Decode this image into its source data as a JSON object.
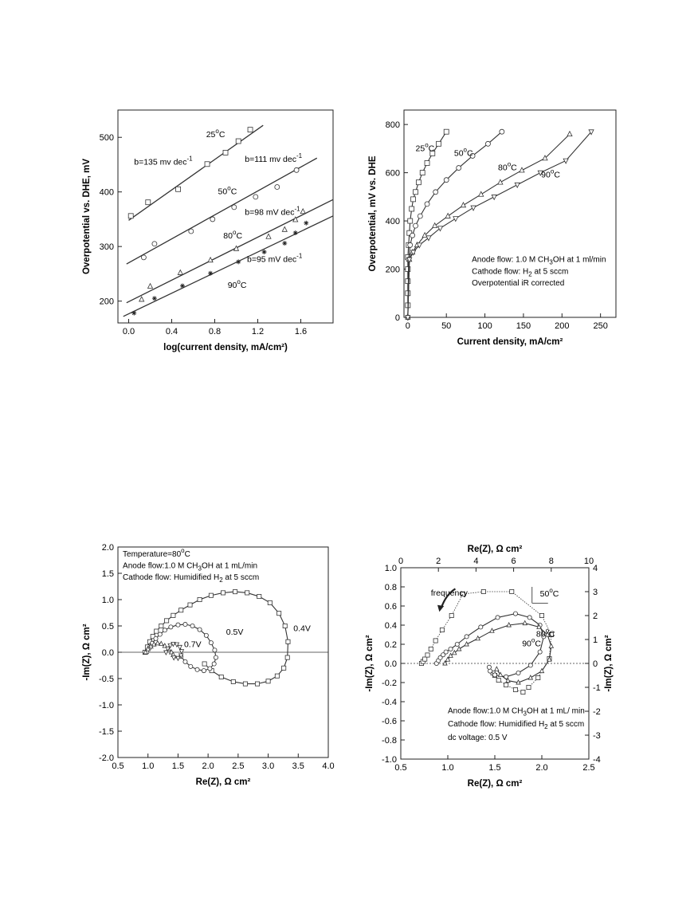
{
  "chart_data": [
    {
      "id": "tafel",
      "type": "scatter",
      "xlabel": "log(current density, mA/cm²)",
      "ylabel": "Overpotential vs. DHE, mV",
      "xlim": [
        -0.1,
        1.9
      ],
      "ylim": [
        160,
        550
      ],
      "xticks": [
        "0.0",
        "0.4",
        "0.8",
        "1.2",
        "1.6"
      ],
      "yticks": [
        "200",
        "300",
        "400",
        "500"
      ],
      "xtick_values": [
        0,
        0.4,
        0.8,
        1.2,
        1.6
      ],
      "ytick_values": [
        200,
        300,
        400,
        500
      ],
      "series": [
        {
          "marker": "square",
          "x": [
            0.02,
            0.18,
            0.46,
            0.73,
            0.9,
            1.02,
            1.13
          ],
          "y": [
            356,
            381,
            405,
            451,
            472,
            493,
            514
          ],
          "fit": [
            [
              0.0,
              348
            ],
            [
              1.25,
              522
            ]
          ]
        },
        {
          "marker": "circle",
          "x": [
            0.14,
            0.24,
            0.58,
            0.78,
            0.98,
            1.18,
            1.38,
            1.56
          ],
          "y": [
            280,
            305,
            328,
            350,
            372,
            391,
            409,
            440
          ],
          "fit": [
            [
              -0.02,
              268
            ],
            [
              1.75,
              462
            ]
          ]
        },
        {
          "marker": "triangle",
          "x": [
            0.12,
            0.2,
            0.48,
            0.76,
            1.0,
            1.3,
            1.45,
            1.55,
            1.62
          ],
          "y": [
            203,
            227,
            252,
            275,
            296,
            318,
            331,
            349,
            364
          ],
          "fit": [
            [
              -0.02,
              197
            ],
            [
              1.9,
              386
            ]
          ]
        },
        {
          "marker": "star",
          "x": [
            0.05,
            0.24,
            0.5,
            0.76,
            1.02,
            1.26,
            1.45,
            1.55,
            1.65
          ],
          "y": [
            178,
            205,
            228,
            251,
            272,
            290,
            306,
            325,
            343
          ],
          "fit": [
            [
              -0.05,
              172
            ],
            [
              1.9,
              356
            ]
          ]
        }
      ],
      "annotations": [
        {
          "text": "25",
          "sup": "o",
          "tail": "C",
          "x": 0.72,
          "y": 500
        },
        {
          "text": "b=135 mv dec",
          "sup": "-1",
          "tail": "",
          "x": 0.05,
          "y": 450
        },
        {
          "text": "b=111 mv dec",
          "sup": "-1",
          "tail": "",
          "x": 1.08,
          "y": 455
        },
        {
          "text": "50",
          "sup": "o",
          "tail": "C",
          "x": 0.83,
          "y": 396
        },
        {
          "text": "b=98 mV dec",
          "sup": "-1",
          "tail": "",
          "x": 1.08,
          "y": 358
        },
        {
          "text": "80",
          "sup": "o",
          "tail": "C",
          "x": 0.88,
          "y": 315
        },
        {
          "text": "b=95 mV dec",
          "sup": "-1",
          "tail": "",
          "x": 1.1,
          "y": 272
        },
        {
          "text": "90",
          "sup": "o",
          "tail": "C",
          "x": 0.92,
          "y": 224
        }
      ]
    },
    {
      "id": "polarization",
      "type": "line",
      "xlabel": "Current density, mA/cm²",
      "ylabel": "Overpotential, mV vs. DHE",
      "xlim": [
        -5,
        270
      ],
      "ylim": [
        0,
        860
      ],
      "xticks": [
        "0",
        "50",
        "100",
        "150",
        "200",
        "250"
      ],
      "yticks": [
        "0",
        "200",
        "400",
        "600",
        "800"
      ],
      "xtick_values": [
        0,
        50,
        100,
        150,
        200,
        250
      ],
      "ytick_values": [
        0,
        200,
        400,
        600,
        800
      ],
      "series": [
        {
          "marker": "square",
          "x": [
            0,
            0,
            0,
            0,
            0,
            1,
            2,
            3,
            5,
            7,
            10,
            14,
            19,
            25,
            32,
            40,
            50
          ],
          "y": [
            50,
            100,
            150,
            200,
            250,
            300,
            350,
            400,
            450,
            490,
            520,
            560,
            600,
            640,
            680,
            720,
            770
          ]
        },
        {
          "marker": "circle",
          "x": [
            0,
            1,
            3,
            6,
            10,
            16,
            25,
            36,
            50,
            66,
            84,
            104,
            122
          ],
          "y": [
            0,
            240,
            300,
            340,
            380,
            420,
            470,
            520,
            570,
            620,
            670,
            720,
            770
          ]
        },
        {
          "marker": "triangle",
          "x": [
            0,
            2,
            6,
            12,
            22,
            35,
            52,
            72,
            95,
            120,
            148,
            178,
            210
          ],
          "y": [
            0,
            240,
            270,
            300,
            340,
            380,
            420,
            465,
            510,
            560,
            610,
            660,
            760
          ]
        },
        {
          "marker": "invtriangle",
          "x": [
            0,
            2,
            7,
            15,
            27,
            42,
            62,
            85,
            112,
            142,
            172,
            205,
            238
          ],
          "y": [
            0,
            240,
            270,
            300,
            330,
            370,
            410,
            455,
            500,
            550,
            600,
            650,
            770
          ]
        }
      ],
      "annotations": [
        {
          "text": "25",
          "sup": "o",
          "tail": "C",
          "x": 10,
          "y": 690
        },
        {
          "text": "50",
          "sup": "o",
          "tail": "C",
          "x": 60,
          "y": 670
        },
        {
          "text": "80",
          "sup": "o",
          "tail": "C",
          "x": 117,
          "y": 610
        },
        {
          "text": "90",
          "sup": "o",
          "tail": "C",
          "x": 173,
          "y": 580
        }
      ],
      "notes": [
        {
          "text": "Anode flow: 1.0 M CH",
          "sub": "3",
          "tail": "OH at 1 ml/min",
          "x": 83,
          "y": 230
        },
        {
          "text": "Cathode flow:  H",
          "sub": "2",
          "tail": " at 5 sccm",
          "x": 83,
          "y": 180
        },
        {
          "text": "Overpotential iR corrected",
          "sub": "",
          "tail": "",
          "x": 83,
          "y": 133
        }
      ]
    },
    {
      "id": "eis-voltage",
      "type": "line",
      "xlabel": "Re(Z), Ω cm²",
      "ylabel": "-Im(Z), Ω cm²",
      "xlim": [
        0.5,
        4.0
      ],
      "ylim": [
        -2.0,
        2.0
      ],
      "xticks": [
        "0.5",
        "1.0",
        "1.5",
        "2.0",
        "2.5",
        "3.0",
        "3.5",
        "4.0"
      ],
      "yticks": [
        "-2.0",
        "-1.5",
        "-1.0",
        "-0.5",
        "0.0",
        "0.5",
        "1.0",
        "1.5",
        "2.0"
      ],
      "xtick_values": [
        0.5,
        1.0,
        1.5,
        2.0,
        2.5,
        3.0,
        3.5,
        4.0
      ],
      "ytick_values": [
        -2.0,
        -1.5,
        -1.0,
        -0.5,
        0.0,
        0.5,
        1.0,
        1.5,
        2.0
      ],
      "series": [
        {
          "marker": "square",
          "x": [
            0.95,
            0.99,
            1.03,
            1.08,
            1.14,
            1.22,
            1.31,
            1.42,
            1.55,
            1.7,
            1.86,
            2.05,
            2.25,
            2.45,
            2.65,
            2.85,
            3.03,
            3.18,
            3.28,
            3.33,
            3.32,
            3.26,
            3.15,
            3.0,
            2.82,
            2.62,
            2.42,
            2.22,
            2.06,
            1.94
          ],
          "y": [
            0.0,
            0.1,
            0.2,
            0.3,
            0.4,
            0.5,
            0.6,
            0.7,
            0.8,
            0.9,
            1.0,
            1.08,
            1.13,
            1.15,
            1.13,
            1.06,
            0.94,
            0.74,
            0.5,
            0.2,
            -0.1,
            -0.3,
            -0.45,
            -0.55,
            -0.6,
            -0.6,
            -0.56,
            -0.47,
            -0.35,
            -0.22
          ]
        },
        {
          "marker": "circle",
          "x": [
            0.98,
            1.02,
            1.07,
            1.13,
            1.2,
            1.28,
            1.38,
            1.5,
            1.62,
            1.74,
            1.86,
            1.97,
            2.05,
            2.11,
            2.13,
            2.1,
            2.03,
            1.93,
            1.82,
            1.71,
            1.62,
            1.55
          ],
          "y": [
            0.0,
            0.08,
            0.17,
            0.26,
            0.34,
            0.42,
            0.48,
            0.52,
            0.53,
            0.5,
            0.43,
            0.32,
            0.18,
            0.04,
            -0.1,
            -0.22,
            -0.31,
            -0.35,
            -0.33,
            -0.27,
            -0.18,
            -0.08
          ]
        },
        {
          "marker": "triangle",
          "x": [
            0.96,
            1.0,
            1.05,
            1.1,
            1.16,
            1.22,
            1.28,
            1.34,
            1.39,
            1.42
          ],
          "y": [
            0.0,
            0.06,
            0.11,
            0.15,
            0.17,
            0.16,
            0.12,
            0.06,
            0.0,
            -0.05
          ]
        },
        {
          "marker": "invtriangle",
          "x": [
            1.3,
            1.33,
            1.37,
            1.42,
            1.48,
            1.53,
            1.56,
            1.55,
            1.5,
            1.43
          ],
          "y": [
            0.0,
            0.07,
            0.13,
            0.16,
            0.15,
            0.1,
            0.02,
            -0.06,
            -0.11,
            -0.1
          ]
        }
      ],
      "annotations": [
        {
          "text": "0.4V",
          "sup": "",
          "tail": "",
          "x": 3.42,
          "y": 0.4
        },
        {
          "text": "0.5V",
          "sup": "",
          "tail": "",
          "x": 2.3,
          "y": 0.33
        },
        {
          "text": "0.7V",
          "sup": "",
          "tail": "",
          "x": 1.6,
          "y": 0.1
        }
      ],
      "notes": [
        {
          "text": "Temperature=80",
          "sub": "",
          "sup": "o",
          "tail": "C",
          "x": 0.58,
          "y": 1.82
        },
        {
          "text": "Anode flow:1.0 M CH",
          "sub": "3",
          "sup": "",
          "tail": "OH at 1 mL/min",
          "x": 0.58,
          "y": 1.6
        },
        {
          "text": "Cathode flow: Humidified H",
          "sub": "2",
          "sup": "",
          "tail": "  at 5 sccm",
          "x": 0.58,
          "y": 1.38
        }
      ]
    },
    {
      "id": "eis-temperature",
      "type": "line",
      "xlabel": "Re(Z), Ω cm²",
      "ylabel": "-Im(Z), Ω cm²",
      "x2label": "Re(Z), Ω cm²",
      "y2label": "-Im(Z), Ω cm²",
      "xlim": [
        0.5,
        2.5
      ],
      "ylim": [
        -1.0,
        1.0
      ],
      "x2lim": [
        0,
        10
      ],
      "y2lim": [
        -4,
        4
      ],
      "xticks": [
        "0.5",
        "1.0",
        "1.5",
        "2.0",
        "2.5"
      ],
      "yticks": [
        "-1.0",
        "-0.8",
        "-0.6",
        "-0.4",
        "-0.2",
        "0.0",
        "0.2",
        "0.4",
        "0.6",
        "0.8",
        "1.0"
      ],
      "x2ticks": [
        "0",
        "2",
        "4",
        "6",
        "8",
        "10"
      ],
      "y2ticks": [
        "-4",
        "-3",
        "-2",
        "-1",
        "0",
        "1",
        "2",
        "3",
        "4"
      ],
      "xtick_values": [
        0.5,
        1.0,
        1.5,
        2.0,
        2.5
      ],
      "ytick_values": [
        -1.0,
        -0.8,
        -0.6,
        -0.4,
        -0.2,
        0.0,
        0.2,
        0.4,
        0.6,
        0.8,
        1.0
      ],
      "x2tick_values": [
        0,
        2,
        4,
        6,
        8,
        10
      ],
      "y2tick_values": [
        -4,
        -3,
        -2,
        -1,
        0,
        1,
        2,
        3,
        4
      ],
      "series": [
        {
          "marker": "square",
          "axes": "top-right",
          "style": "dotted",
          "x": [
            1.1,
            1.18,
            1.28,
            1.42,
            1.6,
            1.85,
            2.2,
            2.7,
            3.3,
            4.4,
            5.9,
            7.5,
            8.0,
            7.9,
            7.3,
            6.8,
            6.5,
            6.1,
            5.6,
            5.2,
            5.0,
            4.9
          ],
          "y": [
            0.0,
            0.08,
            0.18,
            0.35,
            0.6,
            0.95,
            1.4,
            2.0,
            2.9,
            3.0,
            3.0,
            2.0,
            1.2,
            0.2,
            -0.6,
            -1.0,
            -1.2,
            -1.1,
            -0.9,
            -0.7,
            -0.5,
            -0.4
          ]
        },
        {
          "marker": "circle",
          "axes": "bottom-left",
          "style": "solid",
          "x": [
            0.88,
            0.9,
            0.92,
            0.95,
            0.98,
            1.03,
            1.1,
            1.2,
            1.35,
            1.53,
            1.72,
            1.87,
            1.98,
            2.02,
            1.98,
            1.88,
            1.75,
            1.62,
            1.5,
            1.45,
            1.44
          ],
          "y": [
            0.0,
            0.03,
            0.06,
            0.09,
            0.12,
            0.15,
            0.2,
            0.28,
            0.38,
            0.48,
            0.52,
            0.48,
            0.4,
            0.28,
            0.12,
            -0.02,
            -0.1,
            -0.14,
            -0.12,
            -0.08,
            -0.04
          ]
        },
        {
          "marker": "triangle",
          "axes": "bottom-left",
          "style": "solid",
          "x": [
            0.97,
            1.0,
            1.03,
            1.07,
            1.12,
            1.2,
            1.32,
            1.47,
            1.65,
            1.82,
            1.97,
            2.06,
            2.1,
            2.08,
            2.0,
            1.88,
            1.75,
            1.64,
            1.56,
            1.52
          ],
          "y": [
            0.0,
            0.04,
            0.08,
            0.11,
            0.15,
            0.2,
            0.26,
            0.34,
            0.4,
            0.42,
            0.38,
            0.3,
            0.18,
            0.04,
            -0.08,
            -0.15,
            -0.2,
            -0.18,
            -0.12,
            -0.06
          ]
        }
      ],
      "annotations": [
        {
          "text": "50",
          "sup": "o",
          "tail": "C",
          "x": 1.98,
          "y": 0.7
        },
        {
          "text": "80",
          "sup": "o",
          "tail": "C",
          "x": 1.94,
          "y": 0.28
        },
        {
          "text": "90",
          "sup": "o",
          "tail": "C",
          "x": 1.79,
          "y": 0.18
        },
        {
          "text": "frequency",
          "sup": "",
          "tail": "",
          "x": 0.82,
          "y": 0.71
        }
      ],
      "notes": [
        {
          "text": "Anode flow:1.0 M CH",
          "sub": "3",
          "sup": "",
          "tail": "OH at 1 mL/ min",
          "x": 1.0,
          "y": -0.52
        },
        {
          "text": "Cathode flow: Humidified H",
          "sub": "2",
          "sup": "",
          "tail": "  at 5 sccm",
          "x": 1.0,
          "y": -0.66
        },
        {
          "text": "dc voltage: 0.5 V",
          "sub": "",
          "sup": "",
          "tail": "",
          "x": 1.0,
          "y": -0.8
        }
      ]
    }
  ]
}
